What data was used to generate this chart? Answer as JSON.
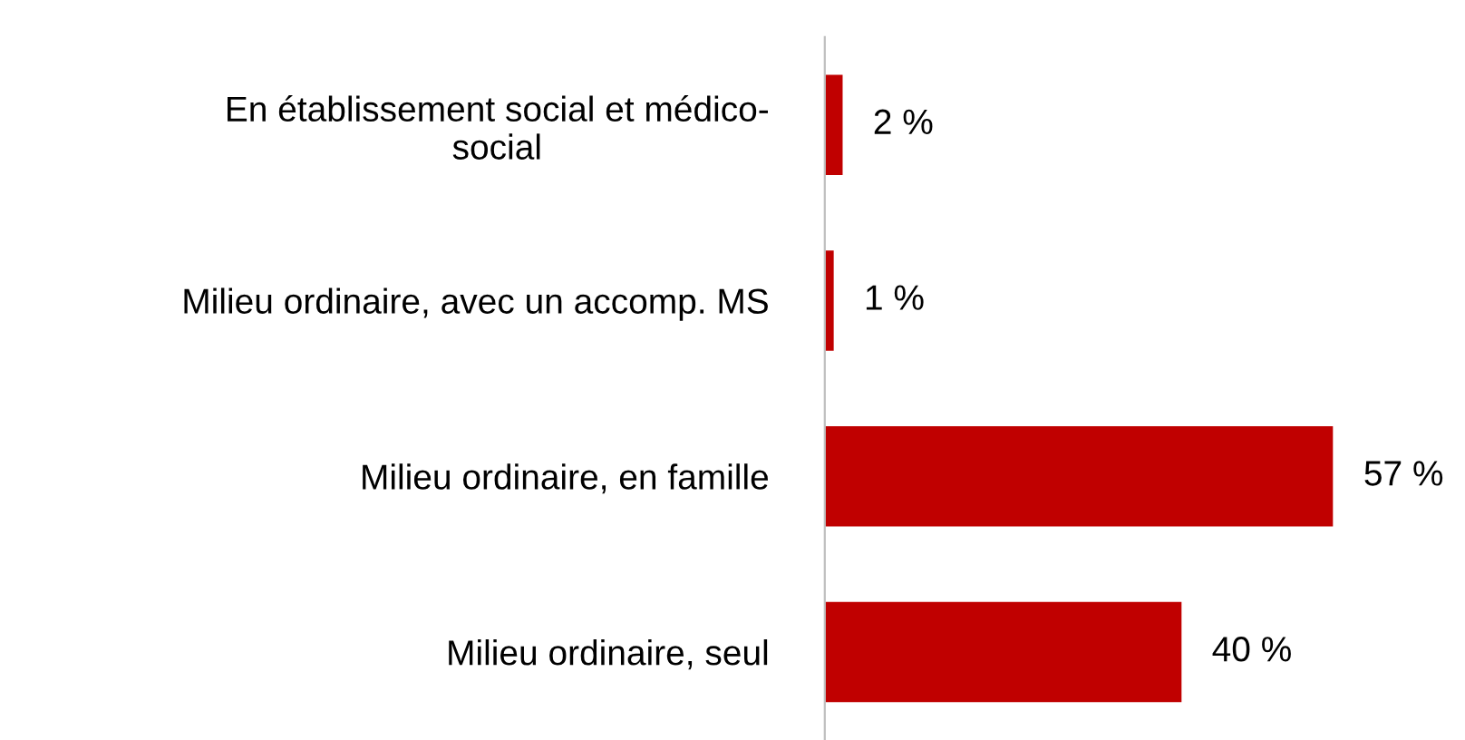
{
  "chart_data": {
    "type": "bar",
    "orientation": "horizontal",
    "categories": [
      "En établissement social et médico-social",
      "Milieu ordinaire, avec un accomp. MS",
      "Milieu ordinaire, en famille",
      "Milieu ordinaire, seul"
    ],
    "values": [
      2,
      1,
      57,
      40
    ],
    "value_labels": [
      "2 %",
      "1 %",
      "57 %",
      "40 %"
    ],
    "color": "#c00000",
    "tick_labels": "y",
    "grid": false,
    "legend": false
  }
}
